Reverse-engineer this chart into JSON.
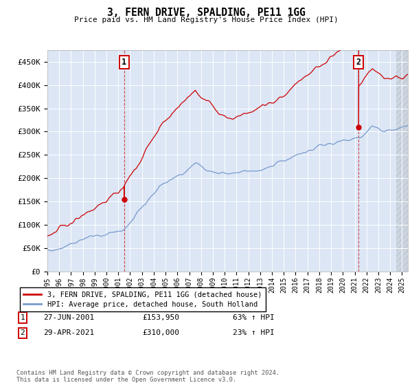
{
  "title": "3, FERN DRIVE, SPALDING, PE11 1GG",
  "subtitle": "Price paid vs. HM Land Registry's House Price Index (HPI)",
  "ylabel_ticks": [
    "£0",
    "£50K",
    "£100K",
    "£150K",
    "£200K",
    "£250K",
    "£300K",
    "£350K",
    "£400K",
    "£450K"
  ],
  "ytick_values": [
    0,
    50000,
    100000,
    150000,
    200000,
    250000,
    300000,
    350000,
    400000,
    450000
  ],
  "ylim": [
    0,
    475000
  ],
  "xlim_start": 1995.0,
  "xlim_end": 2025.5,
  "sale1_x": 2001.49,
  "sale1_y": 153950,
  "sale2_x": 2021.33,
  "sale2_y": 310000,
  "hpi_color": "#7799cc",
  "price_color": "#cc0000",
  "background_color": "#dce6f5",
  "legend_label_price": "3, FERN DRIVE, SPALDING, PE11 1GG (detached house)",
  "legend_label_hpi": "HPI: Average price, detached house, South Holland",
  "annotation1_date": "27-JUN-2001",
  "annotation1_price": "£153,950",
  "annotation1_hpi": "63% ↑ HPI",
  "annotation2_date": "29-APR-2021",
  "annotation2_price": "£310,000",
  "annotation2_hpi": "23% ↑ HPI",
  "footer": "Contains HM Land Registry data © Crown copyright and database right 2024.\nThis data is licensed under the Open Government Licence v3.0.",
  "x_tick_years": [
    1995,
    1996,
    1997,
    1998,
    1999,
    2000,
    2001,
    2002,
    2003,
    2004,
    2005,
    2006,
    2007,
    2008,
    2009,
    2010,
    2011,
    2012,
    2013,
    2014,
    2015,
    2016,
    2017,
    2018,
    2019,
    2020,
    2021,
    2022,
    2023,
    2024,
    2025
  ]
}
